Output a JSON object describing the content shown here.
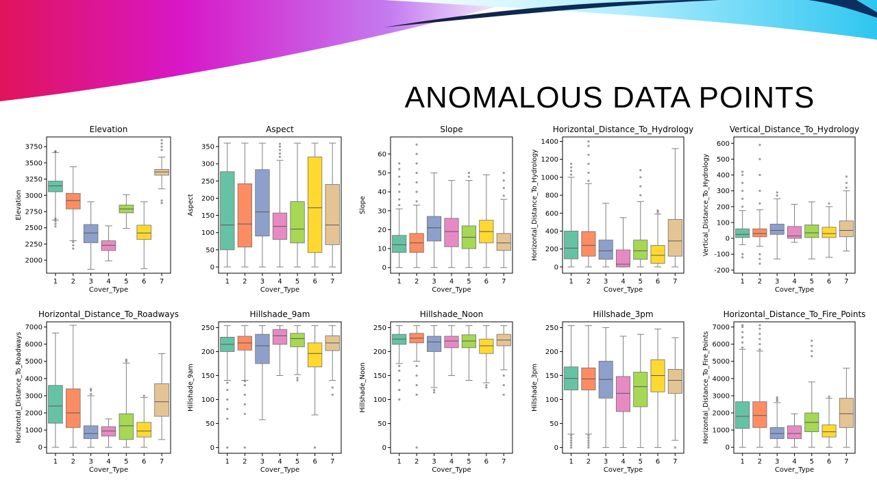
{
  "slide": {
    "title": "ANOMALOUS DATA POINTS"
  },
  "palette": [
    "#66c2a5",
    "#fc8d62",
    "#8da0cb",
    "#e78ac3",
    "#a6d854",
    "#ffd92f",
    "#e5c494"
  ],
  "chart_data": [
    {
      "type": "box",
      "title": "Elevation",
      "xlabel": "Cover_Type",
      "ylabel": "Elevation",
      "categories": [
        "1",
        "2",
        "3",
        "4",
        "5",
        "6",
        "7"
      ],
      "ylim": [
        1800,
        3900
      ],
      "yticks": [
        2000,
        2250,
        2500,
        2750,
        3000,
        3250,
        3500,
        3750
      ],
      "boxes": [
        {
          "whislo": 2620,
          "q1": 3055,
          "med": 3145,
          "q3": 3220,
          "whishi": 3660,
          "fliers": [
            2520,
            2560,
            2600,
            2640,
            3670,
            3680
          ]
        },
        {
          "whislo": 2300,
          "q1": 2790,
          "med": 2920,
          "q3": 3030,
          "whishi": 3440,
          "fliers": [
            2180,
            2230,
            2280
          ]
        },
        {
          "whislo": 1860,
          "q1": 2270,
          "med": 2420,
          "q3": 2550,
          "whishi": 2900,
          "fliers": []
        },
        {
          "whislo": 1990,
          "q1": 2150,
          "med": 2230,
          "q3": 2300,
          "whishi": 2530,
          "fliers": []
        },
        {
          "whislo": 2490,
          "q1": 2730,
          "med": 2790,
          "q3": 2850,
          "whishi": 3010,
          "fliers": []
        },
        {
          "whislo": 1870,
          "q1": 2320,
          "med": 2420,
          "q3": 2540,
          "whishi": 2900,
          "fliers": []
        },
        {
          "whislo": 3100,
          "q1": 3310,
          "med": 3360,
          "q3": 3400,
          "whishi": 3590,
          "fliers": [
            2880,
            2920,
            3700,
            3750,
            3800,
            3850
          ]
        }
      ]
    },
    {
      "type": "box",
      "title": "Aspect",
      "xlabel": "Cover_Type",
      "ylabel": "Aspect",
      "categories": [
        "1",
        "2",
        "3",
        "4",
        "5",
        "6",
        "7"
      ],
      "ylim": [
        -18,
        378
      ],
      "yticks": [
        0,
        50,
        100,
        150,
        200,
        250,
        300,
        350
      ],
      "boxes": [
        {
          "whislo": 0,
          "q1": 50,
          "med": 122,
          "q3": 277,
          "whishi": 360,
          "fliers": []
        },
        {
          "whislo": 0,
          "q1": 58,
          "med": 125,
          "q3": 242,
          "whishi": 360,
          "fliers": []
        },
        {
          "whislo": 0,
          "q1": 90,
          "med": 160,
          "q3": 283,
          "whishi": 360,
          "fliers": []
        },
        {
          "whislo": 0,
          "q1": 80,
          "med": 118,
          "q3": 157,
          "whishi": 310,
          "fliers": [
            320,
            330,
            340,
            350,
            358
          ]
        },
        {
          "whislo": 0,
          "q1": 70,
          "med": 110,
          "q3": 190,
          "whishi": 360,
          "fliers": []
        },
        {
          "whislo": 0,
          "q1": 42,
          "med": 172,
          "q3": 320,
          "whishi": 360,
          "fliers": []
        },
        {
          "whislo": 0,
          "q1": 65,
          "med": 122,
          "q3": 240,
          "whishi": 360,
          "fliers": []
        }
      ]
    },
    {
      "type": "box",
      "title": "Slope",
      "xlabel": "Cover_Type",
      "ylabel": "Slope",
      "categories": [
        "1",
        "2",
        "3",
        "4",
        "5",
        "6",
        "7"
      ],
      "ylim": [
        -3,
        69
      ],
      "yticks": [
        0,
        10,
        20,
        30,
        40,
        50,
        60
      ],
      "boxes": [
        {
          "whislo": 0,
          "q1": 8,
          "med": 12,
          "q3": 17,
          "whishi": 31,
          "fliers": [
            33,
            36,
            40,
            44,
            48,
            52,
            55
          ]
        },
        {
          "whislo": 0,
          "q1": 8,
          "med": 13,
          "q3": 18,
          "whishi": 33,
          "fliers": [
            35,
            40,
            45,
            50,
            55,
            60,
            65
          ]
        },
        {
          "whislo": 0,
          "q1": 14,
          "med": 21,
          "q3": 27,
          "whishi": 50,
          "fliers": []
        },
        {
          "whislo": 0,
          "q1": 11,
          "med": 19,
          "q3": 26,
          "whishi": 46,
          "fliers": []
        },
        {
          "whislo": 0,
          "q1": 10,
          "med": 16,
          "q3": 22,
          "whishi": 46,
          "fliers": [
            48,
            50
          ]
        },
        {
          "whislo": 0,
          "q1": 13,
          "med": 19,
          "q3": 25,
          "whishi": 49,
          "fliers": []
        },
        {
          "whislo": 0,
          "q1": 9,
          "med": 13,
          "q3": 18,
          "whishi": 36,
          "fliers": [
            38,
            42,
            46,
            50
          ]
        }
      ]
    },
    {
      "type": "box",
      "title": "Horizontal_Distance_To_Hydrology",
      "xlabel": "Cover_Type",
      "ylabel": "Horizontal_Distance_To_Hydrology",
      "categories": [
        "1",
        "2",
        "3",
        "4",
        "5",
        "6",
        "7"
      ],
      "ylim": [
        -70,
        1450
      ],
      "yticks": [
        0,
        200,
        400,
        600,
        800,
        1000,
        1200,
        1400
      ],
      "boxes": [
        {
          "whislo": 0,
          "q1": 90,
          "med": 210,
          "q3": 400,
          "whishi": 1000,
          "fliers": [
            1030,
            1070,
            1110,
            1150
          ]
        },
        {
          "whislo": 0,
          "q1": 120,
          "med": 240,
          "q3": 395,
          "whishi": 930,
          "fliers": [
            960,
            1050,
            1150,
            1250,
            1350,
            1400
          ]
        },
        {
          "whislo": 0,
          "q1": 85,
          "med": 180,
          "q3": 300,
          "whishi": 710,
          "fliers": []
        },
        {
          "whislo": 0,
          "q1": 0,
          "med": 30,
          "q3": 190,
          "whishi": 550,
          "fliers": []
        },
        {
          "whislo": 0,
          "q1": 85,
          "med": 180,
          "q3": 300,
          "whishi": 730,
          "fliers": [
            800,
            900,
            1000,
            1080
          ]
        },
        {
          "whislo": 0,
          "q1": 40,
          "med": 130,
          "q3": 240,
          "whishi": 590,
          "fliers": [
            610,
            630
          ]
        },
        {
          "whislo": 0,
          "q1": 120,
          "med": 290,
          "q3": 530,
          "whishi": 1320,
          "fliers": []
        }
      ]
    },
    {
      "type": "box",
      "title": "Vertical_Distance_To_Hydrology",
      "xlabel": "Cover_Type",
      "ylabel": "Vertical_Distance_To_Hydrology",
      "categories": [
        "1",
        "2",
        "3",
        "4",
        "5",
        "6",
        "7"
      ],
      "ylim": [
        -220,
        640
      ],
      "yticks": [
        -200,
        -100,
        0,
        100,
        200,
        300,
        400,
        500,
        600
      ],
      "boxes": [
        {
          "whislo": -40,
          "q1": 5,
          "med": 25,
          "q3": 60,
          "whishi": 175,
          "fliers": [
            -120,
            -100,
            200,
            250,
            300,
            350,
            400,
            420
          ]
        },
        {
          "whislo": -50,
          "q1": 10,
          "med": 30,
          "q3": 60,
          "whishi": 180,
          "fliers": [
            -160,
            -130,
            -100,
            220,
            300,
            400,
            500,
            590
          ]
        },
        {
          "whislo": -130,
          "q1": 25,
          "med": 50,
          "q3": 90,
          "whishi": 250,
          "fliers": [
            270,
            290
          ]
        },
        {
          "whislo": -25,
          "q1": 0,
          "med": 15,
          "q3": 75,
          "whishi": 215,
          "fliers": []
        },
        {
          "whislo": -130,
          "q1": 5,
          "med": 35,
          "q3": 85,
          "whishi": 230,
          "fliers": []
        },
        {
          "whislo": -120,
          "q1": 5,
          "med": 30,
          "q3": 70,
          "whishi": 200,
          "fliers": [
            220
          ]
        },
        {
          "whislo": -80,
          "q1": 10,
          "med": 50,
          "q3": 110,
          "whishi": 300,
          "fliers": [
            320,
            350,
            390
          ]
        }
      ]
    },
    {
      "type": "box",
      "title": "Horizontal_Distance_To_Roadways",
      "xlabel": "Cover_Type",
      "ylabel": "Horizontal_Distance_To_Roadways",
      "categories": [
        "1",
        "2",
        "3",
        "4",
        "5",
        "6",
        "7"
      ],
      "ylim": [
        -350,
        7300
      ],
      "yticks": [
        0,
        1000,
        2000,
        3000,
        4000,
        5000,
        6000,
        7000
      ],
      "boxes": [
        {
          "whislo": 0,
          "q1": 1400,
          "med": 2400,
          "q3": 3600,
          "whishi": 6650,
          "fliers": []
        },
        {
          "whislo": 0,
          "q1": 1150,
          "med": 2000,
          "q3": 3400,
          "whishi": 7100,
          "fliers": []
        },
        {
          "whislo": 0,
          "q1": 500,
          "med": 800,
          "q3": 1250,
          "whishi": 3000,
          "fliers": [
            3100,
            3300,
            3400
          ]
        },
        {
          "whislo": 0,
          "q1": 650,
          "med": 950,
          "q3": 1200,
          "whishi": 1650,
          "fliers": []
        },
        {
          "whislo": 0,
          "q1": 450,
          "med": 1250,
          "q3": 1950,
          "whishi": 4900,
          "fliers": [
            5000,
            5100
          ]
        },
        {
          "whislo": 0,
          "q1": 600,
          "med": 950,
          "q3": 1450,
          "whishi": 2900,
          "fliers": [
            3000
          ]
        },
        {
          "whislo": 450,
          "q1": 1800,
          "med": 2650,
          "q3": 3700,
          "whishi": 5450,
          "fliers": []
        }
      ]
    },
    {
      "type": "box",
      "title": "Hillshade_9am",
      "xlabel": "Cover_Type",
      "ylabel": "Hillshade_9am",
      "categories": [
        "1",
        "2",
        "3",
        "4",
        "5",
        "6",
        "7"
      ],
      "ylim": [
        -12,
        262
      ],
      "yticks": [
        0,
        50,
        100,
        150,
        200,
        250
      ],
      "boxes": [
        {
          "whislo": 140,
          "q1": 200,
          "med": 215,
          "q3": 230,
          "whishi": 254,
          "fliers": [
            0,
            60,
            80,
            100,
            120,
            135
          ]
        },
        {
          "whislo": 140,
          "q1": 203,
          "med": 218,
          "q3": 232,
          "whishi": 254,
          "fliers": [
            0,
            70,
            90,
            110,
            130,
            138
          ]
        },
        {
          "whislo": 58,
          "q1": 175,
          "med": 212,
          "q3": 236,
          "whishi": 254,
          "fliers": []
        },
        {
          "whislo": 150,
          "q1": 215,
          "med": 233,
          "q3": 246,
          "whishi": 254,
          "fliers": []
        },
        {
          "whislo": 152,
          "q1": 210,
          "med": 227,
          "q3": 238,
          "whishi": 254,
          "fliers": [
            140,
            145
          ]
        },
        {
          "whislo": 68,
          "q1": 168,
          "med": 196,
          "q3": 218,
          "whishi": 254,
          "fliers": [
            0
          ]
        },
        {
          "whislo": 140,
          "q1": 202,
          "med": 218,
          "q3": 233,
          "whishi": 254,
          "fliers": [
            110,
            125
          ]
        }
      ]
    },
    {
      "type": "box",
      "title": "Hillshade_Noon",
      "xlabel": "Cover_Type",
      "ylabel": "Hillshade_Noon",
      "categories": [
        "1",
        "2",
        "3",
        "4",
        "5",
        "6",
        "7"
      ],
      "ylim": [
        -12,
        262
      ],
      "yticks": [
        0,
        50,
        100,
        150,
        200,
        250
      ],
      "boxes": [
        {
          "whislo": 175,
          "q1": 215,
          "med": 226,
          "q3": 236,
          "whishi": 254,
          "fliers": [
            100,
            120,
            140,
            160,
            170
          ]
        },
        {
          "whislo": 180,
          "q1": 218,
          "med": 228,
          "q3": 238,
          "whishi": 254,
          "fliers": [
            0,
            110,
            130,
            150,
            170
          ]
        },
        {
          "whislo": 125,
          "q1": 200,
          "med": 220,
          "q3": 232,
          "whishi": 254,
          "fliers": [
            115,
            120
          ]
        },
        {
          "whislo": 150,
          "q1": 208,
          "med": 222,
          "q3": 232,
          "whishi": 254,
          "fliers": []
        },
        {
          "whislo": 140,
          "q1": 208,
          "med": 222,
          "q3": 235,
          "whishi": 254,
          "fliers": []
        },
        {
          "whislo": 135,
          "q1": 196,
          "med": 212,
          "q3": 226,
          "whishi": 254,
          "fliers": [
            125,
            130
          ]
        },
        {
          "whislo": 162,
          "q1": 212,
          "med": 224,
          "q3": 236,
          "whishi": 254,
          "fliers": [
            110,
            130,
            150
          ]
        }
      ]
    },
    {
      "type": "box",
      "title": "Hillshade_3pm",
      "xlabel": "Cover_Type",
      "ylabel": "Hillshade_3pm",
      "categories": [
        "1",
        "2",
        "3",
        "4",
        "5",
        "6",
        "7"
      ],
      "ylim": [
        -12,
        262
      ],
      "yticks": [
        0,
        50,
        100,
        150,
        200,
        250
      ],
      "boxes": [
        {
          "whislo": 28,
          "q1": 120,
          "med": 144,
          "q3": 168,
          "whishi": 254,
          "fliers": [
            0,
            5,
            10,
            15,
            20,
            25
          ]
        },
        {
          "whislo": 28,
          "q1": 120,
          "med": 143,
          "q3": 166,
          "whishi": 254,
          "fliers": [
            0,
            5,
            10,
            15,
            20,
            25
          ]
        },
        {
          "whislo": 0,
          "q1": 103,
          "med": 142,
          "q3": 180,
          "whishi": 250,
          "fliers": []
        },
        {
          "whislo": 0,
          "q1": 75,
          "med": 113,
          "q3": 148,
          "whishi": 232,
          "fliers": []
        },
        {
          "whislo": 0,
          "q1": 85,
          "med": 127,
          "q3": 157,
          "whishi": 236,
          "fliers": []
        },
        {
          "whislo": 0,
          "q1": 116,
          "med": 150,
          "q3": 183,
          "whishi": 247,
          "fliers": []
        },
        {
          "whislo": 15,
          "q1": 113,
          "med": 140,
          "q3": 163,
          "whishi": 229,
          "fliers": [
            0
          ]
        }
      ]
    },
    {
      "type": "box",
      "title": "Horizontal_Distance_To_Fire_Points",
      "xlabel": "Cover_Type",
      "ylabel": "Horizontal_Distance_To_Fire_Points",
      "categories": [
        "1",
        "2",
        "3",
        "4",
        "5",
        "6",
        "7"
      ],
      "ylim": [
        -350,
        7300
      ],
      "yticks": [
        0,
        1000,
        2000,
        3000,
        4000,
        5000,
        6000,
        7000
      ],
      "boxes": [
        {
          "whislo": 0,
          "q1": 1100,
          "med": 1800,
          "q3": 2650,
          "whishi": 5700,
          "fliers": [
            5800,
            6100,
            6400,
            6700,
            7000,
            7100
          ]
        },
        {
          "whislo": 0,
          "q1": 1150,
          "med": 1850,
          "q3": 2650,
          "whishi": 5600,
          "fliers": [
            5700,
            6000,
            6300,
            6600,
            6900,
            7100
          ]
        },
        {
          "whislo": 0,
          "q1": 500,
          "med": 800,
          "q3": 1150,
          "whishi": 2600,
          "fliers": [
            2700,
            2800,
            2900
          ]
        },
        {
          "whislo": 0,
          "q1": 500,
          "med": 800,
          "q3": 1250,
          "whishi": 1950,
          "fliers": []
        },
        {
          "whislo": 0,
          "q1": 900,
          "med": 1450,
          "q3": 2000,
          "whishi": 3800,
          "fliers": [
            5300,
            5600,
            5900,
            6200
          ]
        },
        {
          "whislo": 0,
          "q1": 600,
          "med": 900,
          "q3": 1300,
          "whishi": 2850,
          "fliers": [
            2950
          ]
        },
        {
          "whislo": 0,
          "q1": 1150,
          "med": 1950,
          "q3": 2850,
          "whishi": 4600,
          "fliers": []
        }
      ]
    }
  ]
}
